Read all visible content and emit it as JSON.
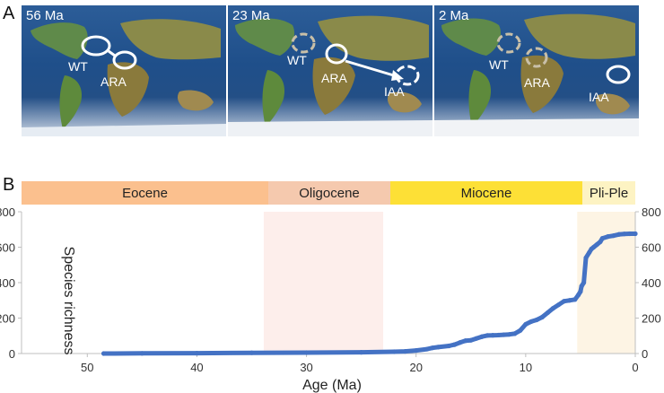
{
  "panels": {
    "a": "A",
    "b": "B"
  },
  "maps": [
    {
      "age": "56 Ma",
      "labels": [
        "WT",
        "ARA"
      ]
    },
    {
      "age": "23 Ma",
      "labels": [
        "WT",
        "ARA",
        "IAA"
      ]
    },
    {
      "age": "2 Ma",
      "labels": [
        "WT",
        "ARA",
        "IAA"
      ]
    }
  ],
  "epochs": [
    {
      "name": "Eocene",
      "color": "#fbc08e",
      "shade": "#ffffff"
    },
    {
      "name": "Oligocene",
      "color": "#f5c9ae",
      "shade": "#fdeeeb"
    },
    {
      "name": "Miocene",
      "color": "#fde036",
      "shade": "#ffffff"
    },
    {
      "name": "Pli-Ple",
      "color": "#fdf3c3",
      "shade": "#fdf4e4"
    }
  ],
  "chart_data": {
    "type": "line",
    "xlabel": "Age (Ma)",
    "ylabel": "Species richness",
    "xlim": [
      56,
      0
    ],
    "ylim": [
      0,
      800
    ],
    "xticks": [
      50,
      40,
      30,
      20,
      10,
      0
    ],
    "yticks": [
      0,
      200,
      400,
      600,
      800
    ],
    "epoch_bounds": [
      56,
      33.9,
      23,
      5.3,
      0
    ],
    "series": [
      {
        "color": "#4472c4",
        "x": [
          48.5,
          45,
          40,
          35,
          30,
          25,
          22,
          21,
          20,
          19,
          18.5,
          18,
          17,
          16.5,
          16,
          15.5,
          15,
          14.5,
          14,
          13.5,
          13,
          12.5,
          12,
          11.5,
          11,
          10.5,
          10,
          9.5,
          9,
          8.5,
          8,
          7.5,
          7,
          6.5,
          6,
          5.5,
          5.2,
          5.0,
          4.9,
          4.7,
          4.5,
          4.2,
          4.0,
          3.8,
          3.5,
          3.2,
          3.0,
          2.5,
          2,
          1.5,
          1,
          0.5,
          0
        ],
        "y": [
          0,
          1,
          2,
          4,
          5,
          7,
          10,
          12,
          17,
          25,
          32,
          36,
          43,
          50,
          62,
          72,
          75,
          85,
          95,
          102,
          103,
          104,
          106,
          108,
          112,
          130,
          165,
          180,
          190,
          205,
          230,
          255,
          275,
          295,
          300,
          305,
          330,
          350,
          380,
          400,
          540,
          570,
          590,
          600,
          615,
          630,
          650,
          660,
          665,
          672,
          675,
          676,
          676
        ]
      }
    ]
  }
}
